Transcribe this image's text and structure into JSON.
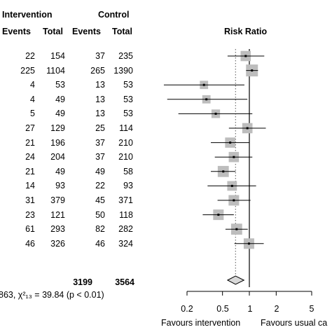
{
  "headers": {
    "intervention": "Intervention",
    "control": "Control",
    "events": "Events",
    "total": "Total",
    "risk_ratio": "Risk Ratio"
  },
  "rows": [
    {
      "ie": "22",
      "it": "154",
      "ce": "37",
      "ct": "235"
    },
    {
      "ie": "225",
      "it": "1104",
      "ce": "265",
      "ct": "1390"
    },
    {
      "ie": "4",
      "it": "53",
      "ce": "13",
      "ct": "53"
    },
    {
      "ie": "4",
      "it": "49",
      "ce": "13",
      "ct": "53"
    },
    {
      "ie": "5",
      "it": "49",
      "ce": "13",
      "ct": "53"
    },
    {
      "ie": "27",
      "it": "129",
      "ce": "25",
      "ct": "114"
    },
    {
      "ie": "21",
      "it": "196",
      "ce": "37",
      "ct": "210"
    },
    {
      "ie": "24",
      "it": "204",
      "ce": "37",
      "ct": "210"
    },
    {
      "ie": "21",
      "it": "49",
      "ce": "49",
      "ct": "58"
    },
    {
      "ie": "14",
      "it": "93",
      "ce": "22",
      "ct": "93"
    },
    {
      "ie": "31",
      "it": "379",
      "ce": "45",
      "ct": "371"
    },
    {
      "ie": "23",
      "it": "121",
      "ce": "50",
      "ct": "118"
    },
    {
      "ie": "61",
      "it": "293",
      "ce": "82",
      "ct": "282"
    },
    {
      "ie": "46",
      "it": "326",
      "ce": "46",
      "ct": "324"
    }
  ],
  "totals": {
    "intervention": "3199",
    "control": "3564"
  },
  "heterogeneity_text": "863, χ²₁₃ = 39.84 (p < 0.01)",
  "labels": {
    "favours_left": "Favours intervention",
    "favours_right": "Favours usual ca"
  },
  "chart_data": {
    "type": "forest",
    "scale": "log",
    "xlim": [
      0.2,
      5
    ],
    "xticks": [
      0.2,
      0.5,
      1,
      2,
      5
    ],
    "xtick_labels": [
      "0.2",
      "0.5",
      "1",
      "2",
      "5"
    ],
    "null_line": 1,
    "pooled_line": 0.7,
    "studies": [
      {
        "rr": 0.91,
        "lo": 0.57,
        "hi": 1.47,
        "weight": 0.7
      },
      {
        "rr": 1.07,
        "lo": 0.92,
        "hi": 1.25,
        "weight": 1.0
      },
      {
        "rr": 0.31,
        "lo": 0.11,
        "hi": 0.88,
        "weight": 0.35
      },
      {
        "rr": 0.33,
        "lo": 0.12,
        "hi": 0.95,
        "weight": 0.35
      },
      {
        "rr": 0.42,
        "lo": 0.16,
        "hi": 1.08,
        "weight": 0.4
      },
      {
        "rr": 0.95,
        "lo": 0.59,
        "hi": 1.53,
        "weight": 0.7
      },
      {
        "rr": 0.61,
        "lo": 0.37,
        "hi": 1.0,
        "weight": 0.7
      },
      {
        "rr": 0.67,
        "lo": 0.41,
        "hi": 1.08,
        "weight": 0.7
      },
      {
        "rr": 0.51,
        "lo": 0.37,
        "hi": 0.7,
        "weight": 0.85
      },
      {
        "rr": 0.64,
        "lo": 0.34,
        "hi": 1.19,
        "weight": 0.6
      },
      {
        "rr": 0.67,
        "lo": 0.44,
        "hi": 1.03,
        "weight": 0.75
      },
      {
        "rr": 0.45,
        "lo": 0.3,
        "hi": 0.67,
        "weight": 0.75
      },
      {
        "rr": 0.72,
        "lo": 0.54,
        "hi": 0.96,
        "weight": 0.85
      },
      {
        "rr": 0.99,
        "lo": 0.68,
        "hi": 1.45,
        "weight": 0.75
      }
    ],
    "pooled": {
      "rr": 0.7,
      "lo": 0.57,
      "hi": 0.87
    }
  }
}
